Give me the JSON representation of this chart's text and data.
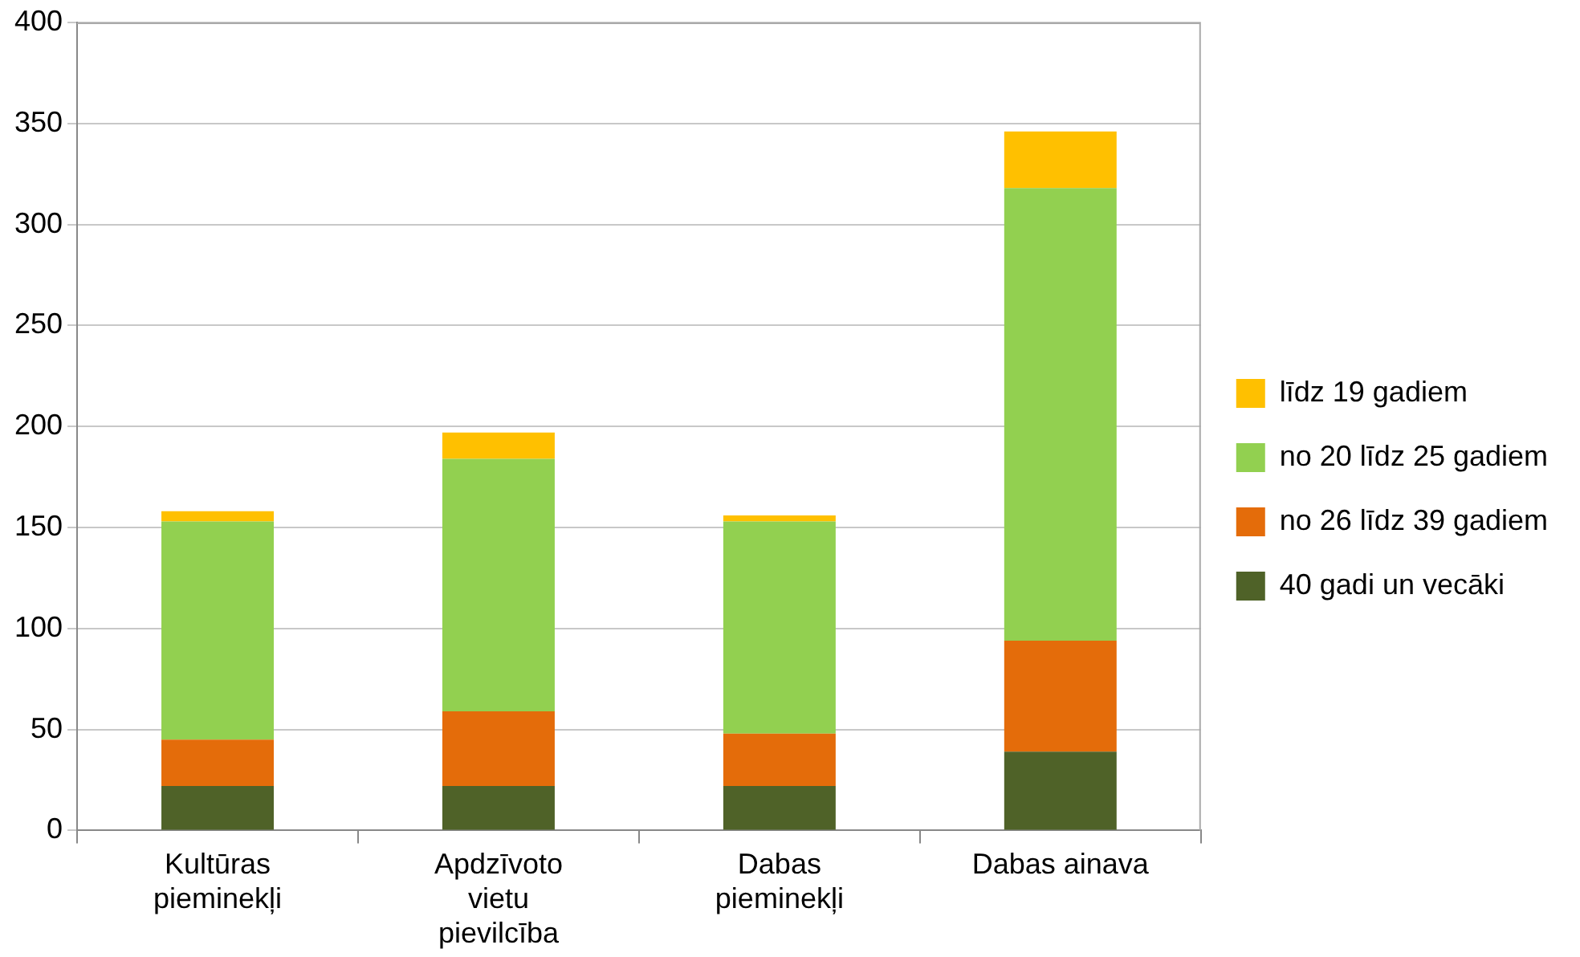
{
  "chart_data": {
    "type": "bar",
    "stacked": true,
    "categories": [
      "Kultūras pieminekļi",
      "Apdzīvoto vietu pievilcība",
      "Dabas pieminekļi",
      "Dabas ainava"
    ],
    "series": [
      {
        "name": "40 gadi un vecāki",
        "color": "#4f6228",
        "values": [
          22,
          22,
          22,
          39
        ]
      },
      {
        "name": "no 26 līdz 39 gadiem",
        "color": "#e46c0a",
        "values": [
          23,
          37,
          26,
          55
        ]
      },
      {
        "name": "no 20 līdz 25 gadiem",
        "color": "#92d050",
        "values": [
          108,
          125,
          105,
          224
        ]
      },
      {
        "name": "līdz 19 gadiem",
        "color": "#ffc000",
        "values": [
          5,
          13,
          3,
          28
        ]
      }
    ],
    "ylim": [
      0,
      400
    ],
    "yticks": [
      0,
      50,
      100,
      150,
      200,
      250,
      300,
      350,
      400
    ],
    "grid": "y",
    "legend": "right"
  }
}
